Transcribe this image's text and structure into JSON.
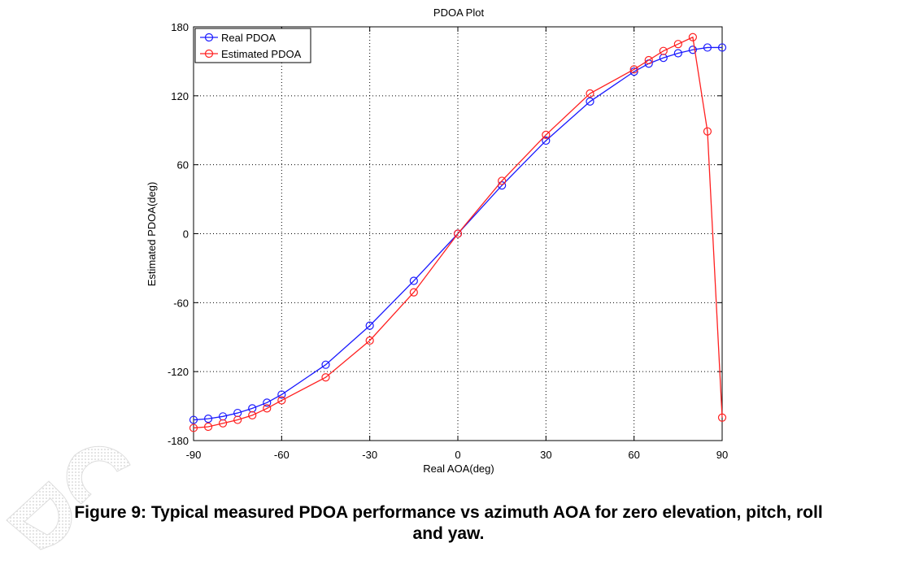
{
  "chart_data": {
    "type": "line",
    "title": "PDOA Plot",
    "xlabel": "Real AOA(deg)",
    "ylabel": "Estimated PDOA(deg)",
    "xlim": [
      -90,
      90
    ],
    "ylim": [
      -180,
      180
    ],
    "xticks": [
      -90,
      -60,
      -30,
      0,
      30,
      60,
      90
    ],
    "yticks": [
      -180,
      -120,
      -60,
      0,
      60,
      120,
      180
    ],
    "grid": true,
    "legend_position": "top-left",
    "series": [
      {
        "name": "Real PDOA",
        "color": "#1a1aff",
        "marker": "circle",
        "x": [
          -90,
          -85,
          -80,
          -75,
          -70,
          -65,
          -60,
          -45,
          -30,
          -15,
          0,
          15,
          30,
          45,
          60,
          65,
          70,
          75,
          80,
          85,
          90
        ],
        "y": [
          -162,
          -161,
          -159,
          -156,
          -152,
          -147,
          -140,
          -114,
          -80,
          -41,
          0,
          42,
          81,
          115,
          141,
          148,
          153,
          157,
          160,
          162,
          162
        ]
      },
      {
        "name": "Estimated PDOA",
        "color": "#ff2020",
        "marker": "circle",
        "x": [
          -90,
          -85,
          -80,
          -75,
          -70,
          -65,
          -60,
          -45,
          -30,
          -15,
          0,
          15,
          30,
          45,
          60,
          65,
          70,
          75,
          80,
          85,
          90
        ],
        "y": [
          -169,
          -168,
          -165,
          -162,
          -158,
          -152,
          -145,
          -125,
          -93,
          -51,
          0,
          46,
          86,
          122,
          143,
          151,
          159,
          165,
          171,
          89,
          -160
        ]
      }
    ]
  },
  "caption": {
    "line1": "Figure 9: Typical measured PDOA performance vs azimuth AOA for zero elevation, pitch, roll",
    "line2": "and yaw."
  }
}
